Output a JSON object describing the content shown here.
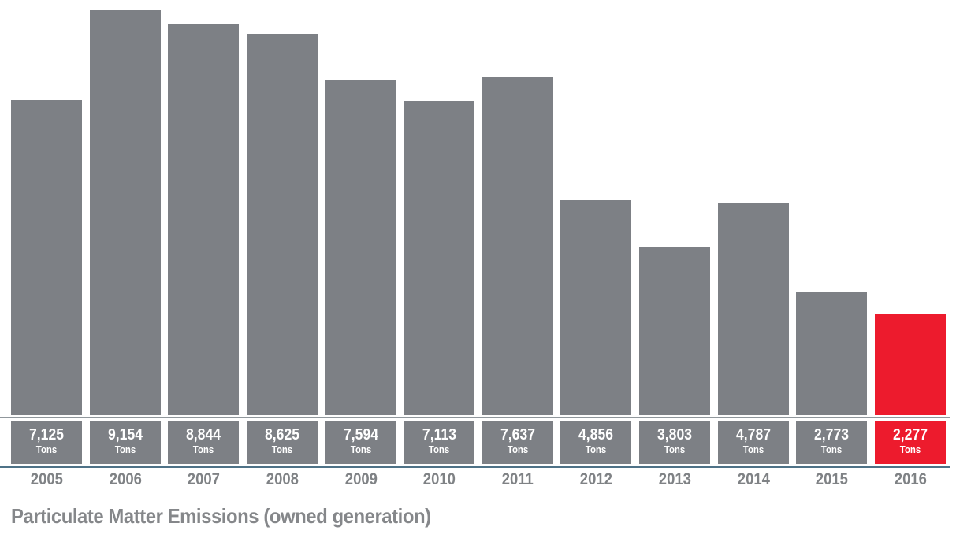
{
  "page": {
    "background": "#ffffff"
  },
  "chart_data": {
    "type": "bar",
    "title": "Particulate Matter Emissions (owned generation)",
    "categories": [
      "2005",
      "2006",
      "2007",
      "2008",
      "2009",
      "2010",
      "2011",
      "2012",
      "2013",
      "2014",
      "2015",
      "2016"
    ],
    "values": [
      7125,
      9154,
      8844,
      8625,
      7594,
      7113,
      7637,
      4856,
      3803,
      4787,
      2773,
      2277
    ],
    "value_labels": [
      "7,125",
      "9,154",
      "8,844",
      "8,625",
      "7,594",
      "7,113",
      "7,637",
      "4,856",
      "3,803",
      "4,787",
      "2,773",
      "2,277"
    ],
    "unit_label": "Tons",
    "highlight_index": 11,
    "ylim": [
      0,
      9400
    ],
    "grid": false,
    "legend": "none",
    "colors": {
      "bar": "#7d8085",
      "highlight_bar": "#ed1b2d",
      "value_text": "#ffffff",
      "year_text": "#7f8285",
      "title_text": "#85878a",
      "separator_top": "#90979c",
      "separator_bottom": "#4e7287"
    }
  }
}
